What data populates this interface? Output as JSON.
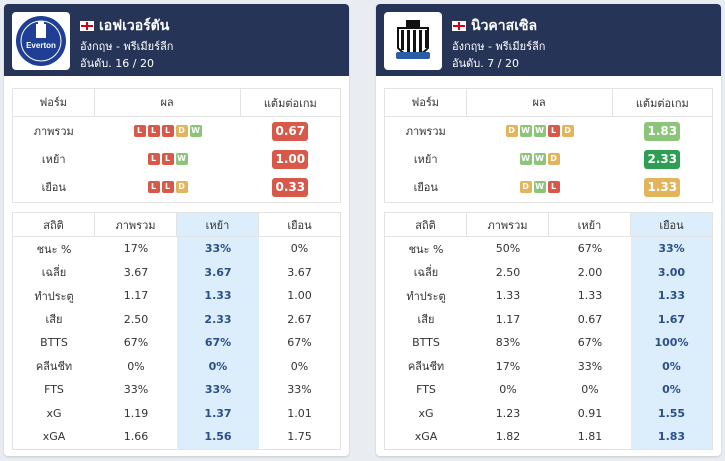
{
  "teams": [
    {
      "name": "เอฟเวอร์ตัน",
      "league": "อังกฤษ - พรีเมียร์ลีก",
      "rank": "อันดับ. 16 / 20",
      "crest_text": "Everton",
      "crest_color": "#1f3f94",
      "form_headers": [
        "ฟอร์ม",
        "ผล",
        "แต้มต่อเกม"
      ],
      "form_rows": [
        {
          "label": "ภาพรวม",
          "results": [
            "L",
            "L",
            "L",
            "D",
            "W"
          ],
          "ppg": "0.67",
          "ppg_color": "#d8584a"
        },
        {
          "label": "เหย้า",
          "results": [
            "L",
            "L",
            "W"
          ],
          "ppg": "1.00",
          "ppg_color": "#d8584a"
        },
        {
          "label": "เยือน",
          "results": [
            "L",
            "L",
            "D"
          ],
          "ppg": "0.33",
          "ppg_color": "#d8584a"
        }
      ],
      "stat_headers": [
        "สถิติ",
        "ภาพรวม",
        "เหย้า",
        "เยือน"
      ],
      "highlight_col": 2,
      "stats": [
        [
          "ชนะ %",
          "17%",
          "33%",
          "0%"
        ],
        [
          "เฉลี่ย",
          "3.67",
          "3.67",
          "3.67"
        ],
        [
          "ทำประตู",
          "1.17",
          "1.33",
          "1.00"
        ],
        [
          "เสีย",
          "2.50",
          "2.33",
          "2.67"
        ],
        [
          "BTTS",
          "67%",
          "67%",
          "67%"
        ],
        [
          "คลีนชีท",
          "0%",
          "0%",
          "0%"
        ],
        [
          "FTS",
          "33%",
          "33%",
          "33%"
        ],
        [
          "xG",
          "1.19",
          "1.37",
          "1.01"
        ],
        [
          "xGA",
          "1.66",
          "1.56",
          "1.75"
        ]
      ]
    },
    {
      "name": "นิวคาสเซิล",
      "league": "อังกฤษ - พรีเมียร์ลีก",
      "rank": "อันดับ. 7 / 20",
      "crest_text": "",
      "crest_color": "#111111",
      "form_headers": [
        "ฟอร์ม",
        "ผล",
        "แต้มต่อเกม"
      ],
      "form_rows": [
        {
          "label": "ภาพรวม",
          "results": [
            "D",
            "W",
            "W",
            "L",
            "D"
          ],
          "ppg": "1.83",
          "ppg_color": "#8cc57a"
        },
        {
          "label": "เหย้า",
          "results": [
            "W",
            "W",
            "D"
          ],
          "ppg": "2.33",
          "ppg_color": "#2e9e52"
        },
        {
          "label": "เยือน",
          "results": [
            "D",
            "W",
            "L"
          ],
          "ppg": "1.33",
          "ppg_color": "#e2b45c"
        }
      ],
      "stat_headers": [
        "สถิติ",
        "ภาพรวม",
        "เหย้า",
        "เยือน"
      ],
      "highlight_col": 3,
      "stats": [
        [
          "ชนะ %",
          "50%",
          "67%",
          "33%"
        ],
        [
          "เฉลี่ย",
          "2.50",
          "2.00",
          "3.00"
        ],
        [
          "ทำประตู",
          "1.33",
          "1.33",
          "1.33"
        ],
        [
          "เสีย",
          "1.17",
          "0.67",
          "1.67"
        ],
        [
          "BTTS",
          "83%",
          "67%",
          "100%"
        ],
        [
          "คลีนชีท",
          "17%",
          "33%",
          "0%"
        ],
        [
          "FTS",
          "0%",
          "0%",
          "0%"
        ],
        [
          "xG",
          "1.23",
          "0.91",
          "1.55"
        ],
        [
          "xGA",
          "1.82",
          "1.81",
          "1.83"
        ]
      ]
    }
  ]
}
